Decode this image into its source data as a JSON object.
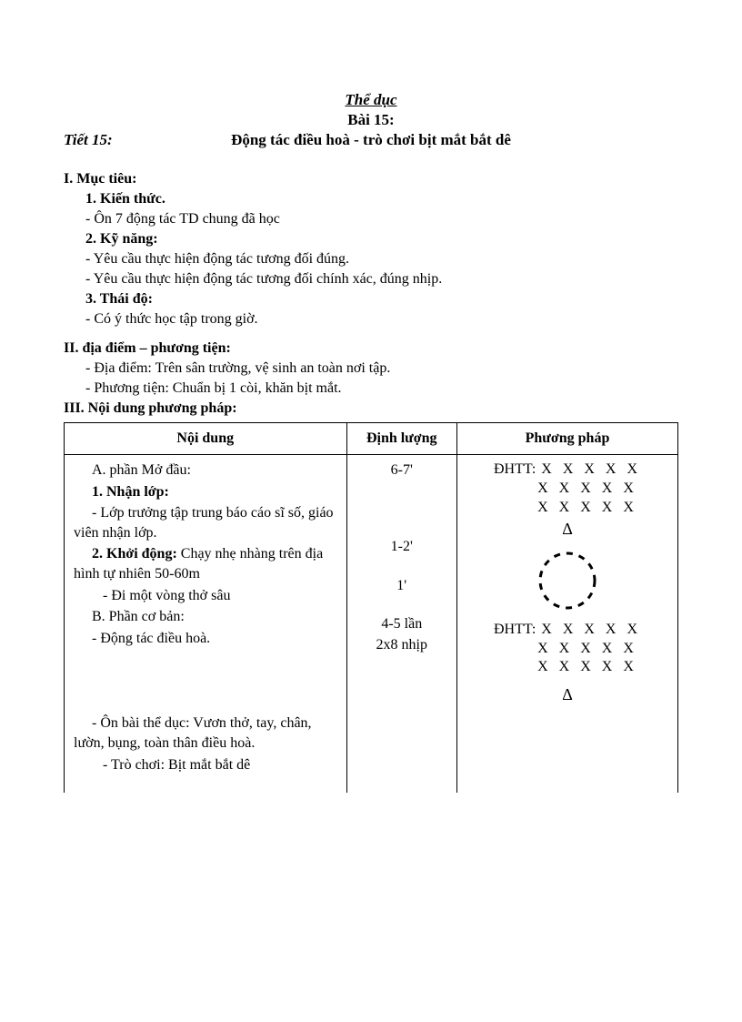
{
  "header": {
    "title": "Thể dục",
    "lesson": "Bài 15:",
    "tiet": "Tiết 15:",
    "subject": "Động tác điều hoà - trò chơi bịt mắt bắt dê"
  },
  "section1": {
    "title": "I. Mục tiêu:",
    "h1": "1. Kiến thức.",
    "l1a": "- Ôn 7 động tác TD chung đã học",
    "h2": "2. Kỹ năng:",
    "l2a": "- Yêu cầu thực hiện động tác tương đối đúng.",
    "l2b": "- Yêu cầu thực hiện động tác tương đối chính xác, đúng nhịp.",
    "h3": "3. Thái độ:",
    "l3a": "- Có ý thức học tập trong giờ."
  },
  "section2": {
    "title": "II. địa điểm – phương tiện:",
    "l1": "- Địa điểm: Trên sân trường, vệ sinh an toàn nơi tập.",
    "l2": "- Phương tiện: Chuẩn bị 1 còi, khăn bịt mắt."
  },
  "section3": {
    "title": "III. Nội dung phương pháp:"
  },
  "table": {
    "headers": {
      "c1": "Nội dung",
      "c2": "Định lượng",
      "c3": "Phương pháp"
    },
    "col1": {
      "a_title": "A. phần Mở đầu:",
      "r1_title": "1. Nhận lớp:",
      "r1_body": "- Lớp trưởng tập trung báo cáo sĩ số, giáo viên nhận lớp.",
      "r2_title": "2. Khởi động:",
      "r2_body_inline": " Chạy nhẹ nhàng trên địa hình tự nhiên 50-60m",
      "r3": "- Đi một vòng thở sâu",
      "b_title": "B. Phần cơ bản:",
      "r4": "- Động tác điều hoà.",
      "r5": "- Ôn bài thể dục: Vươn thở, tay, chân, lườn, bụng, toàn thân điều hoà.",
      "r6": "- Trò chơi: Bịt mắt bắt dê"
    },
    "col2": {
      "v1": "6-7'",
      "v2": "1-2'",
      "v3": "1'",
      "v4a": "4-5 lần",
      "v4b": "2x8 nhịp"
    },
    "col3": {
      "label": "ĐHTT:",
      "row_x": "X X X X X",
      "triangle": "Δ",
      "circle": {
        "stroke": "#000000",
        "stroke_width": 3,
        "dash": "7,7",
        "radius": 30,
        "size": 72
      }
    }
  }
}
